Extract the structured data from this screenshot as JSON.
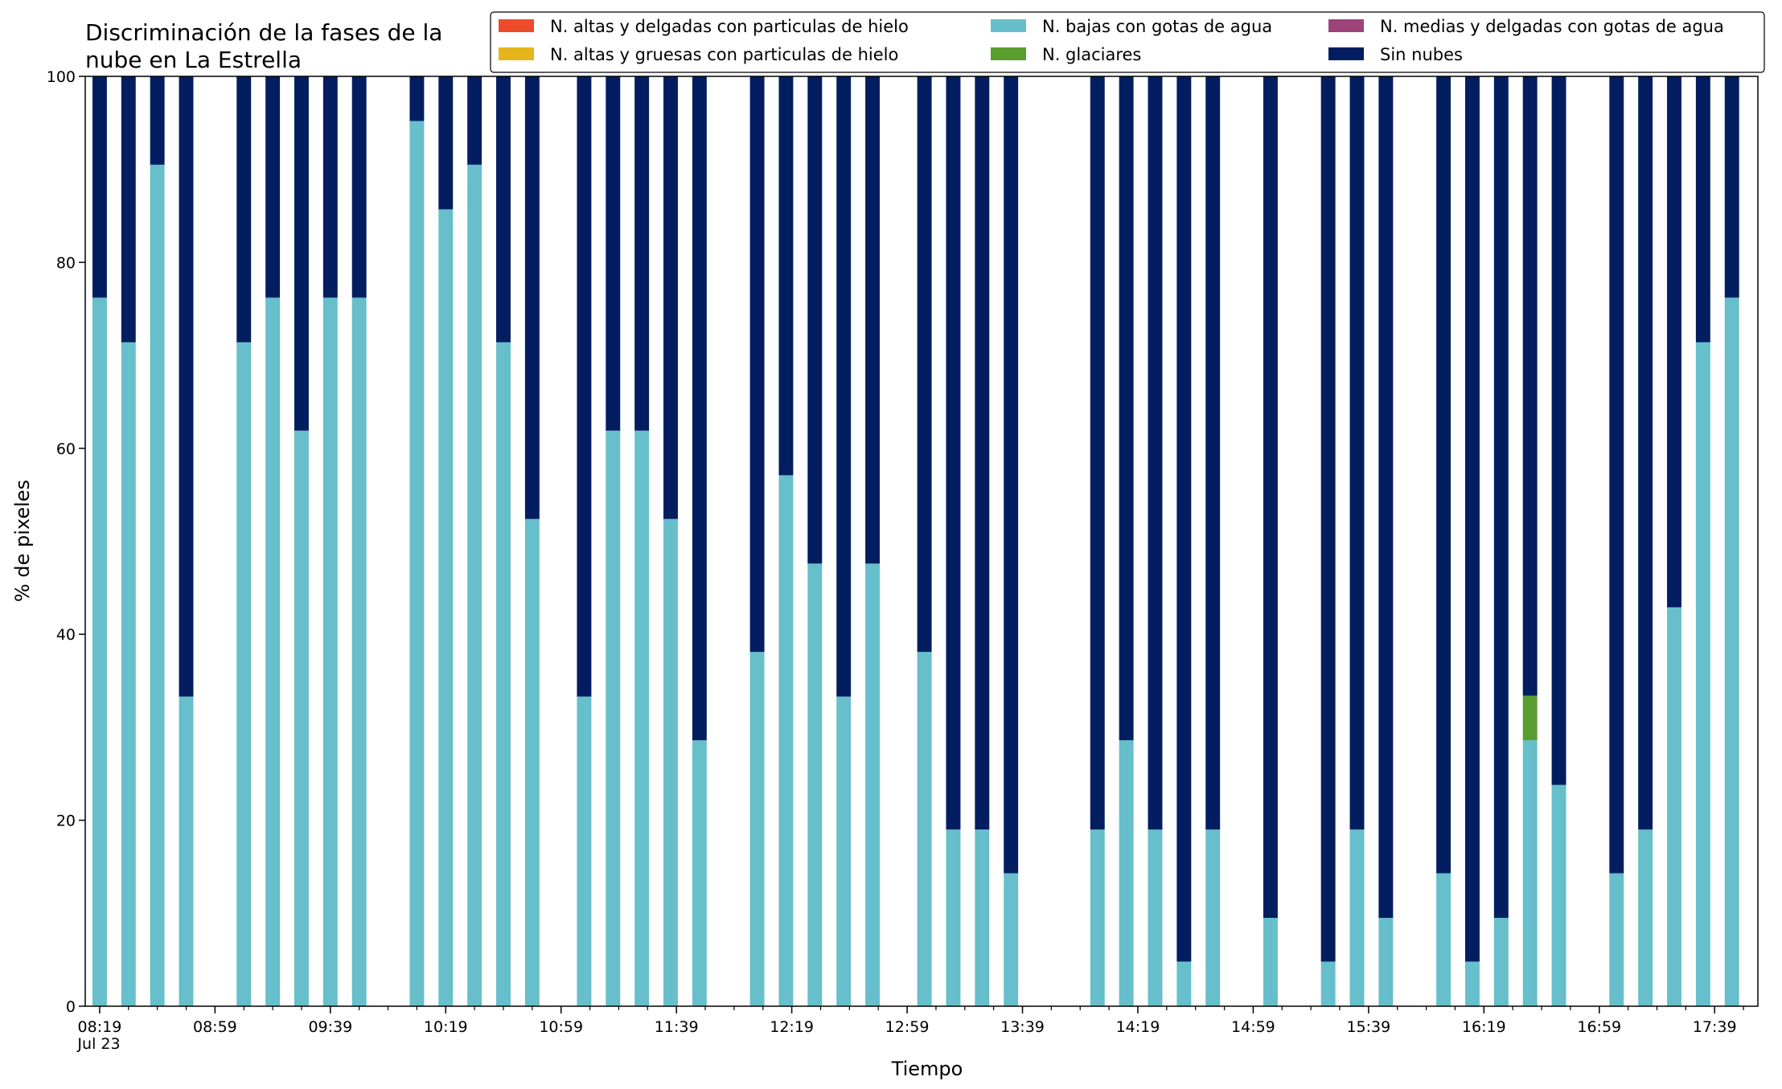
{
  "chart_data": {
    "type": "bar",
    "stacked": true,
    "title_lines": [
      "Discriminación de la fases de la",
      "nube en La Estrella"
    ],
    "xlabel": "Tiempo",
    "ylabel": "% de pixeles",
    "ylim": [
      0,
      100
    ],
    "yticks": [
      0,
      20,
      40,
      60,
      80,
      100
    ],
    "xlim": [
      "08:14",
      "17:54"
    ],
    "date_label": "Jul 23",
    "major_ticks": [
      "08:19",
      "08:59",
      "09:39",
      "10:19",
      "10:59",
      "11:39",
      "12:19",
      "12:59",
      "13:39",
      "14:19",
      "14:59",
      "15:39",
      "16:19",
      "16:59",
      "17:39"
    ],
    "minor_tick_step_min": 10,
    "bar_interval_min": 10,
    "grid": false,
    "legend_position": "top-right",
    "x": [
      "08:19",
      "08:29",
      "08:39",
      "08:49",
      "09:09",
      "09:19",
      "09:29",
      "09:39",
      "09:49",
      "10:09",
      "10:19",
      "10:29",
      "10:39",
      "10:49",
      "11:07",
      "11:17",
      "11:27",
      "11:37",
      "11:47",
      "12:07",
      "12:17",
      "12:27",
      "12:37",
      "12:47",
      "13:05",
      "13:15",
      "13:25",
      "13:35",
      "14:05",
      "14:15",
      "14:25",
      "14:35",
      "14:45",
      "15:05",
      "15:25",
      "15:35",
      "15:45",
      "16:05",
      "16:15",
      "16:25",
      "16:35",
      "16:45",
      "17:05",
      "17:15",
      "17:25",
      "17:35",
      "17:45"
    ],
    "series": [
      {
        "name": "N. altas y delgadas con particulas de hielo",
        "color": "#ee4b2b",
        "values": [
          0,
          0,
          0,
          0,
          0,
          0,
          0,
          0,
          0,
          0,
          0,
          0,
          0,
          0,
          0,
          0,
          0,
          0,
          0,
          0,
          0,
          0,
          0,
          0,
          0,
          0,
          0,
          0,
          0,
          0,
          0,
          0,
          0,
          0,
          0,
          0,
          0,
          0,
          0,
          0,
          0,
          0,
          0,
          0,
          0,
          0,
          0
        ]
      },
      {
        "name": "N. altas y gruesas con particulas de hielo",
        "color": "#e6b51c",
        "values": [
          0,
          0,
          0,
          0,
          0,
          0,
          0,
          0,
          0,
          0,
          0,
          0,
          0,
          0,
          0,
          0,
          0,
          0,
          0,
          0,
          0,
          0,
          0,
          0,
          0,
          0,
          0,
          0,
          0,
          0,
          0,
          0,
          0,
          0,
          0,
          0,
          0,
          0,
          0,
          0,
          0,
          0,
          0,
          0,
          0,
          0,
          0
        ]
      },
      {
        "name": "N. bajas con gotas de agua",
        "color": "#66bfcb",
        "values": [
          76.2,
          71.4,
          90.5,
          33.3,
          71.4,
          76.2,
          61.9,
          76.2,
          76.2,
          95.2,
          85.7,
          90.5,
          71.4,
          52.4,
          33.3,
          61.9,
          61.9,
          52.4,
          28.6,
          38.1,
          57.1,
          47.6,
          33.3,
          47.6,
          38.1,
          19.0,
          19.0,
          14.3,
          19.0,
          28.6,
          19.0,
          4.8,
          19.0,
          9.5,
          4.8,
          19.0,
          9.5,
          14.3,
          4.8,
          9.5,
          28.6,
          23.8,
          14.3,
          19.0,
          42.9,
          71.4,
          76.2
        ]
      },
      {
        "name": "N. glaciares",
        "color": "#5a9e2f",
        "values": [
          0,
          0,
          0,
          0,
          0,
          0,
          0,
          0,
          0,
          0,
          0,
          0,
          0,
          0,
          0,
          0,
          0,
          0,
          0,
          0,
          0,
          0,
          0,
          0,
          0,
          0,
          0,
          0,
          0,
          0,
          0,
          0,
          0,
          0,
          0,
          0,
          0,
          0,
          0,
          0,
          4.8,
          0,
          0,
          0,
          0,
          0,
          0
        ]
      },
      {
        "name": "N. medias y delgadas con gotas de agua",
        "color": "#9e4379",
        "values": [
          0,
          0,
          0,
          0,
          0,
          0,
          0,
          0,
          0,
          0,
          0,
          0,
          0,
          0,
          0,
          0,
          0,
          0,
          0,
          0,
          0,
          0,
          0,
          0,
          0,
          0,
          0,
          0,
          0,
          0,
          0,
          0,
          0,
          0,
          0,
          0,
          0,
          0,
          0,
          0,
          0,
          0,
          0,
          0,
          0,
          0,
          0
        ]
      },
      {
        "name": "Sin nubes",
        "color": "#021e60",
        "values": [
          23.8,
          28.6,
          9.5,
          66.7,
          28.6,
          23.8,
          38.1,
          23.8,
          23.8,
          4.8,
          14.3,
          9.5,
          28.6,
          47.6,
          66.7,
          38.1,
          38.1,
          47.6,
          71.4,
          61.9,
          42.9,
          52.4,
          66.7,
          52.4,
          61.9,
          81.0,
          81.0,
          85.7,
          81.0,
          71.4,
          81.0,
          95.2,
          81.0,
          90.5,
          95.2,
          81.0,
          90.5,
          85.7,
          95.2,
          90.5,
          66.6,
          76.2,
          85.7,
          81.0,
          57.1,
          28.6,
          23.8
        ]
      }
    ]
  }
}
